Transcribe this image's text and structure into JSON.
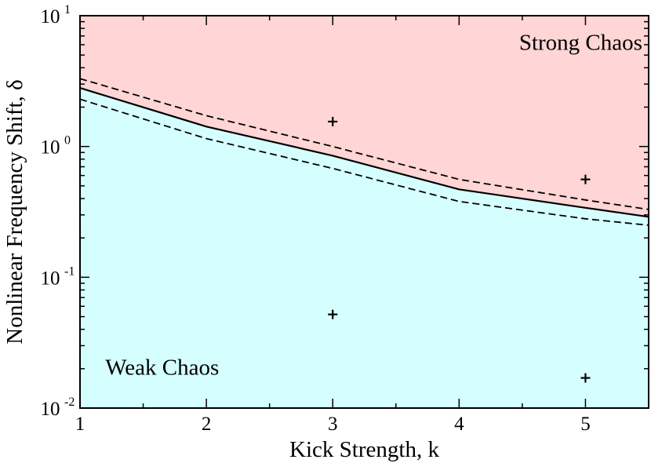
{
  "chart_data": {
    "type": "area",
    "xlabel": "Kick Strength, k",
    "ylabel": "Nonlinear Frequency Shift, δ",
    "xlim": [
      1,
      5.5
    ],
    "ylim": [
      0.01,
      10
    ],
    "yscale": "log",
    "grid": false,
    "x_ticks": [
      "1",
      "2",
      "3",
      "4",
      "5"
    ],
    "y_ticks": [
      {
        "value": 0.01,
        "base": "10",
        "exp": "-2"
      },
      {
        "value": 0.1,
        "base": "10",
        "exp": "-1"
      },
      {
        "value": 1,
        "base": "10",
        "exp": "0"
      },
      {
        "value": 10,
        "base": "10",
        "exp": "1"
      }
    ],
    "regions": [
      {
        "label": "Strong Chaos",
        "color": "#ffd5d5",
        "label_at": [
          5.45,
          5.5
        ]
      },
      {
        "label": "Weak Chaos",
        "color": "#d5ffff",
        "label_at": [
          1.2,
          0.018
        ]
      }
    ],
    "series": [
      {
        "style": "solid",
        "color": "#000000",
        "x": [
          1,
          2,
          3,
          4,
          5,
          5.5
        ],
        "y": [
          2.8,
          1.42,
          0.85,
          0.47,
          0.34,
          0.29
        ]
      },
      {
        "style": "dashed",
        "color": "#000000",
        "x": [
          1,
          2,
          3,
          4,
          5,
          5.5
        ],
        "y": [
          3.3,
          1.72,
          1.0,
          0.56,
          0.39,
          0.33
        ]
      },
      {
        "style": "dashed",
        "color": "#000000",
        "x": [
          1,
          2,
          3,
          4,
          5,
          5.5
        ],
        "y": [
          2.3,
          1.15,
          0.68,
          0.38,
          0.28,
          0.25
        ]
      }
    ],
    "points": [
      {
        "x": 3,
        "y": 1.55
      },
      {
        "x": 5,
        "y": 0.56
      },
      {
        "x": 3,
        "y": 0.052
      },
      {
        "x": 5,
        "y": 0.017
      }
    ]
  }
}
